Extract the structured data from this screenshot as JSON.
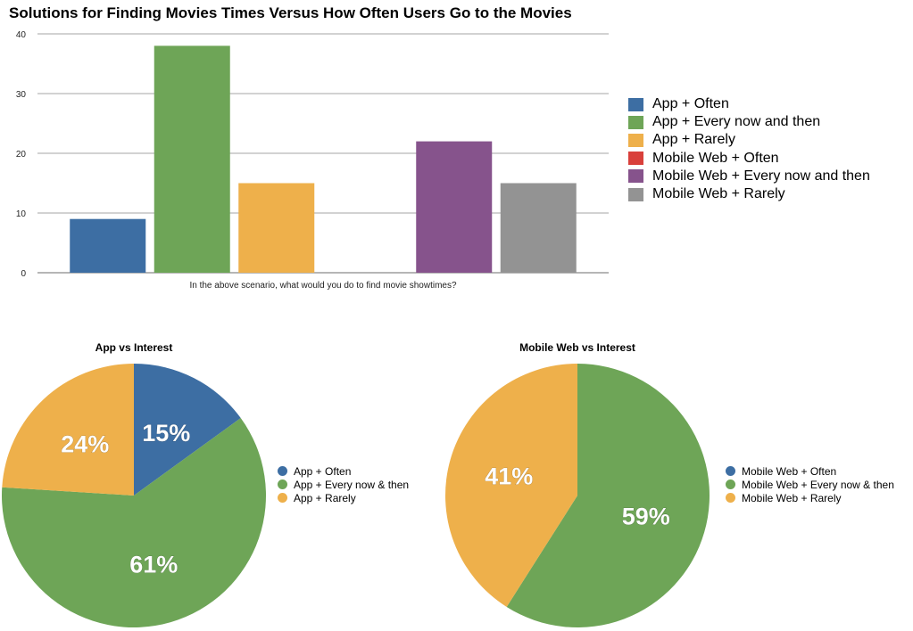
{
  "chart_data": [
    {
      "type": "bar",
      "title": "Solutions for Finding Movies Times Versus How Often Users Go to the Movies",
      "xlabel": "In the above scenario, what would you do to find movie showtimes?",
      "ylabel": "",
      "ylim": [
        0,
        40
      ],
      "yticks": [
        "0",
        "10",
        "20",
        "30",
        "40"
      ],
      "grid": true,
      "legend_position": "right",
      "series": [
        {
          "name": "App + Often",
          "value": 9,
          "color": "#3d6ea3"
        },
        {
          "name": "App + Every now and then",
          "value": 38,
          "color": "#6ea557"
        },
        {
          "name": "App + Rarely",
          "value": 15,
          "color": "#eeb04b"
        },
        {
          "name": "Mobile Web + Often",
          "value": 0,
          "color": "#d9403b"
        },
        {
          "name": "Mobile Web + Every now and then",
          "value": 22,
          "color": "#86538c"
        },
        {
          "name": "Mobile Web + Rarely",
          "value": 15,
          "color": "#939393"
        }
      ]
    },
    {
      "type": "pie",
      "title": "App vs Interest",
      "legend_position": "right",
      "slices": [
        {
          "name": "App + Often",
          "value": 15,
          "label": "15%",
          "color": "#3d6ea3"
        },
        {
          "name": "App + Every now & then",
          "value": 61,
          "label": "61%",
          "color": "#6ea557"
        },
        {
          "name": "App + Rarely",
          "value": 24,
          "label": "24%",
          "color": "#eeb04b"
        }
      ]
    },
    {
      "type": "pie",
      "title": "Mobile Web vs Interest",
      "legend_position": "right",
      "slices": [
        {
          "name": "Mobile Web + Often",
          "value": 0,
          "label": "",
          "color": "#3d6ea3"
        },
        {
          "name": "Mobile Web + Every now & then",
          "value": 59,
          "label": "59%",
          "color": "#6ea557"
        },
        {
          "name": "Mobile Web + Rarely",
          "value": 41,
          "label": "41%",
          "color": "#eeb04b"
        }
      ]
    }
  ]
}
